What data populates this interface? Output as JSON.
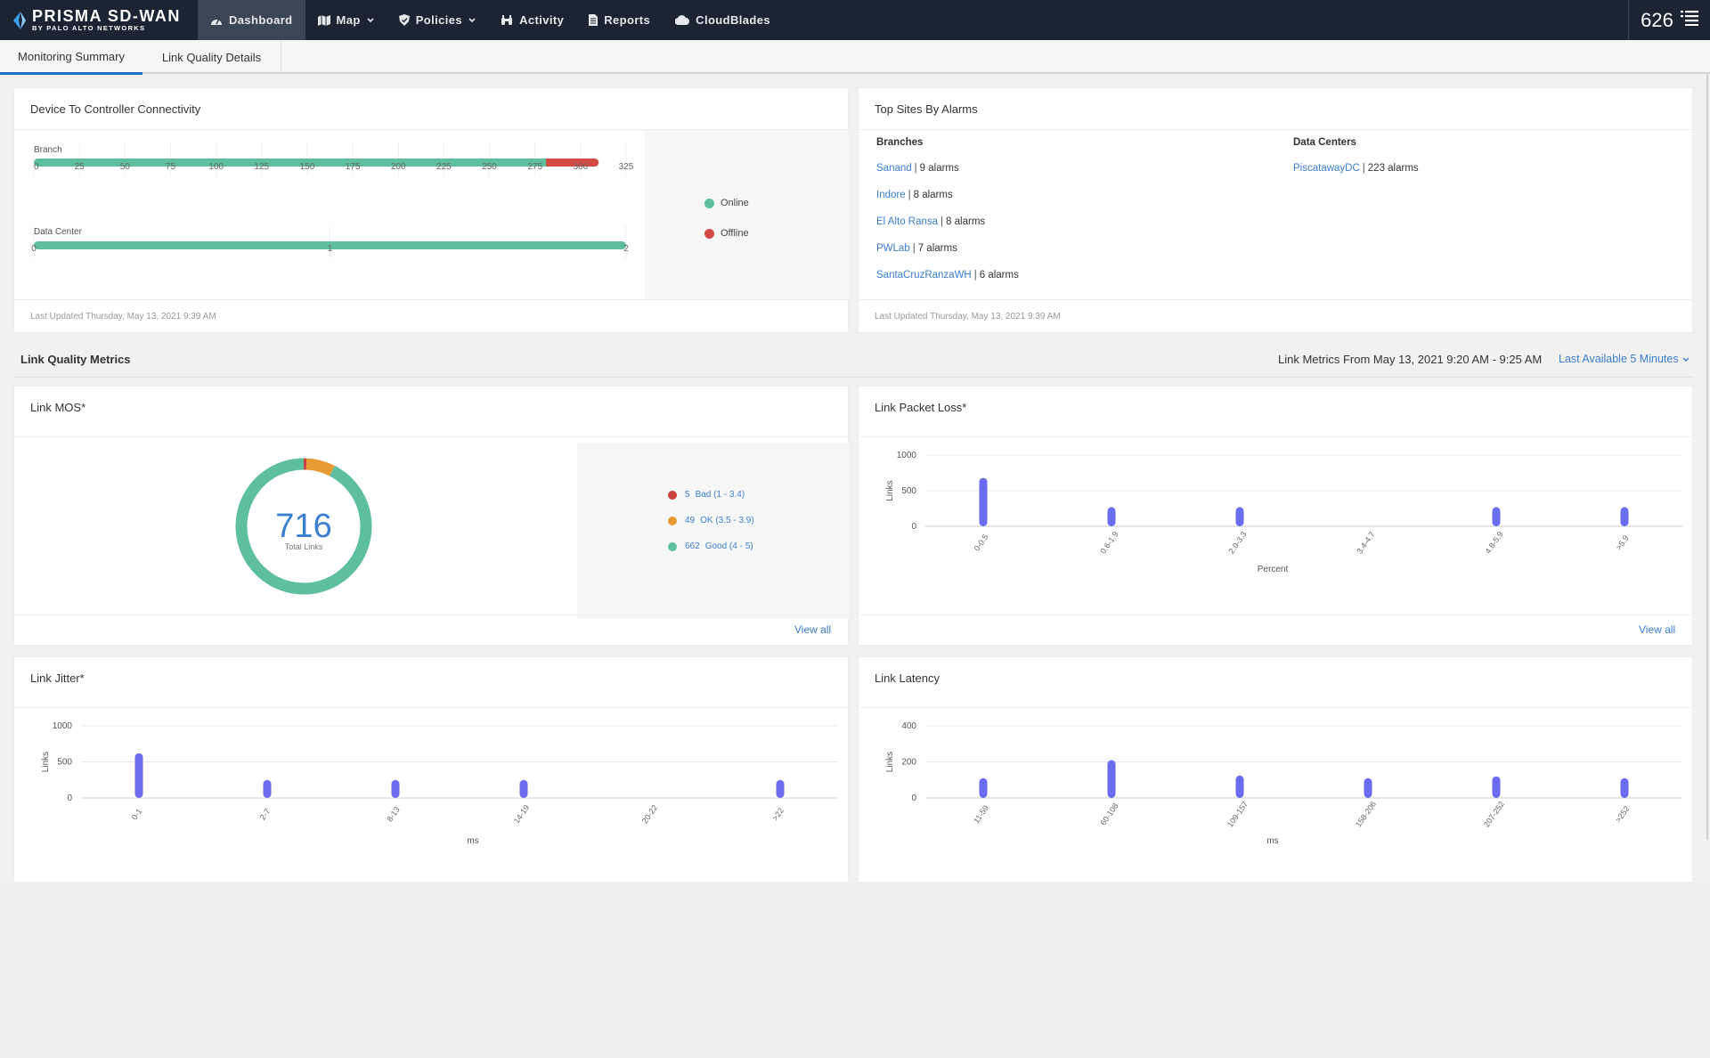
{
  "nav": {
    "brand_name": "PRISMA SD-WAN",
    "brand_sub": "BY PALO ALTO NETWORKS",
    "items": [
      {
        "label": "Dashboard",
        "icon": "gauge-icon",
        "active": true,
        "dropdown": false
      },
      {
        "label": "Map",
        "icon": "map-icon",
        "active": false,
        "dropdown": true
      },
      {
        "label": "Policies",
        "icon": "shield-icon",
        "active": false,
        "dropdown": true
      },
      {
        "label": "Activity",
        "icon": "binoculars-icon",
        "active": false,
        "dropdown": false
      },
      {
        "label": "Reports",
        "icon": "document-icon",
        "active": false,
        "dropdown": false
      },
      {
        "label": "CloudBlades",
        "icon": "cloud-icon",
        "active": false,
        "dropdown": false
      }
    ],
    "count": "626",
    "menu_icon": "list-menu-icon"
  },
  "subtabs": [
    {
      "label": "Monitoring Summary",
      "active": true
    },
    {
      "label": "Link Quality Details",
      "active": false
    }
  ],
  "connectivity": {
    "title": "Device To Controller Connectivity",
    "last_updated": "Last Updated Thursday, May 13, 2021 9:39 AM",
    "legend": [
      {
        "label": "Online",
        "color": "#5dbf9d"
      },
      {
        "label": "Offline",
        "color": "#d24a43"
      }
    ],
    "chart_data": [
      {
        "type": "bar",
        "orientation": "horizontal",
        "category": "Branch",
        "series": [
          {
            "name": "Online",
            "values": [
              283
            ]
          },
          {
            "name": "Offline",
            "values": [
              27
            ]
          }
        ],
        "ticks": [
          "0",
          "25",
          "50",
          "75",
          "100",
          "125",
          "150",
          "175",
          "200",
          "225",
          "250",
          "275",
          "300",
          "325"
        ],
        "xlim": [
          0,
          325
        ]
      },
      {
        "type": "bar",
        "orientation": "horizontal",
        "category": "Data Center",
        "series": [
          {
            "name": "Online",
            "values": [
              2
            ]
          },
          {
            "name": "Offline",
            "values": [
              0
            ]
          }
        ],
        "ticks": [
          "0",
          "1",
          "2"
        ],
        "xlim": [
          0,
          2
        ]
      }
    ]
  },
  "top_sites": {
    "title": "Top Sites By Alarms",
    "branches_heading": "Branches",
    "datacenters_heading": "Data Centers",
    "branches": [
      {
        "name": "Sanand",
        "alarms": "9 alarms"
      },
      {
        "name": "Indore",
        "alarms": "8 alarms"
      },
      {
        "name": "El Alto Ransa",
        "alarms": "8 alarms"
      },
      {
        "name": "PWLab",
        "alarms": "7 alarms"
      },
      {
        "name": "SantaCruzRanzaWH",
        "alarms": "6 alarms"
      }
    ],
    "datacenters": [
      {
        "name": "PiscatawayDC",
        "alarms": "223 alarms"
      }
    ],
    "separator": "|",
    "last_updated": "Last Updated Thursday, May 13, 2021 9:39 AM"
  },
  "link_quality": {
    "title": "Link Quality Metrics",
    "range_text": "Link Metrics From May 13, 2021 9:20 AM - 9:25 AM",
    "range_select": "Last Available 5 Minutes"
  },
  "mos": {
    "title": "Link MOS*",
    "total": "716",
    "total_label": "Total  Links",
    "view_all": "View all",
    "legend": [
      {
        "count": "5",
        "label": "Bad (1 - 3.4)",
        "color": "#cc4040"
      },
      {
        "count": "49",
        "label": "OK (3.5 - 3.9)",
        "color": "#e89a35"
      },
      {
        "count": "662",
        "label": "Good (4 - 5)",
        "color": "#5dbf9d"
      }
    ],
    "chart_data": {
      "type": "pie",
      "donut": true,
      "categories": [
        "Bad (1 - 3.4)",
        "OK (3.5 - 3.9)",
        "Good (4 - 5)"
      ],
      "values": [
        5,
        49,
        662
      ]
    }
  },
  "packet_loss": {
    "title": "Link Packet Loss*",
    "view_all": "View all",
    "chart_data": {
      "type": "bar",
      "categories": [
        "0-0.5",
        "0.6-1.9",
        "2.0-3.3",
        "3.4-4.7",
        "4.8-5.9",
        ">5.9"
      ],
      "values": [
        680,
        270,
        270,
        0,
        270,
        270
      ],
      "xlabel": "Percent",
      "ylabel": "Links",
      "yticks": [
        "0",
        "500",
        "1000"
      ],
      "ylim": [
        0,
        1000
      ]
    }
  },
  "jitter": {
    "title": "Link Jitter*",
    "chart_data": {
      "type": "bar",
      "categories": [
        "0-1",
        "2-7",
        "8-13",
        "14-19",
        "20-22",
        ">22"
      ],
      "values": [
        620,
        250,
        250,
        250,
        0,
        250
      ],
      "xlabel": "ms",
      "ylabel": "Links",
      "yticks": [
        "0",
        "500",
        "1000"
      ],
      "ylim": [
        0,
        1000
      ]
    }
  },
  "latency": {
    "title": "Link Latency",
    "chart_data": {
      "type": "bar",
      "categories": [
        "11-59",
        "60-108",
        "109-157",
        "158-206",
        "207-252",
        ">252"
      ],
      "values": [
        110,
        210,
        125,
        110,
        120,
        110
      ],
      "xlabel": "ms",
      "ylabel": "Links",
      "yticks": [
        "0",
        "200",
        "400"
      ],
      "ylim": [
        0,
        400
      ]
    }
  }
}
